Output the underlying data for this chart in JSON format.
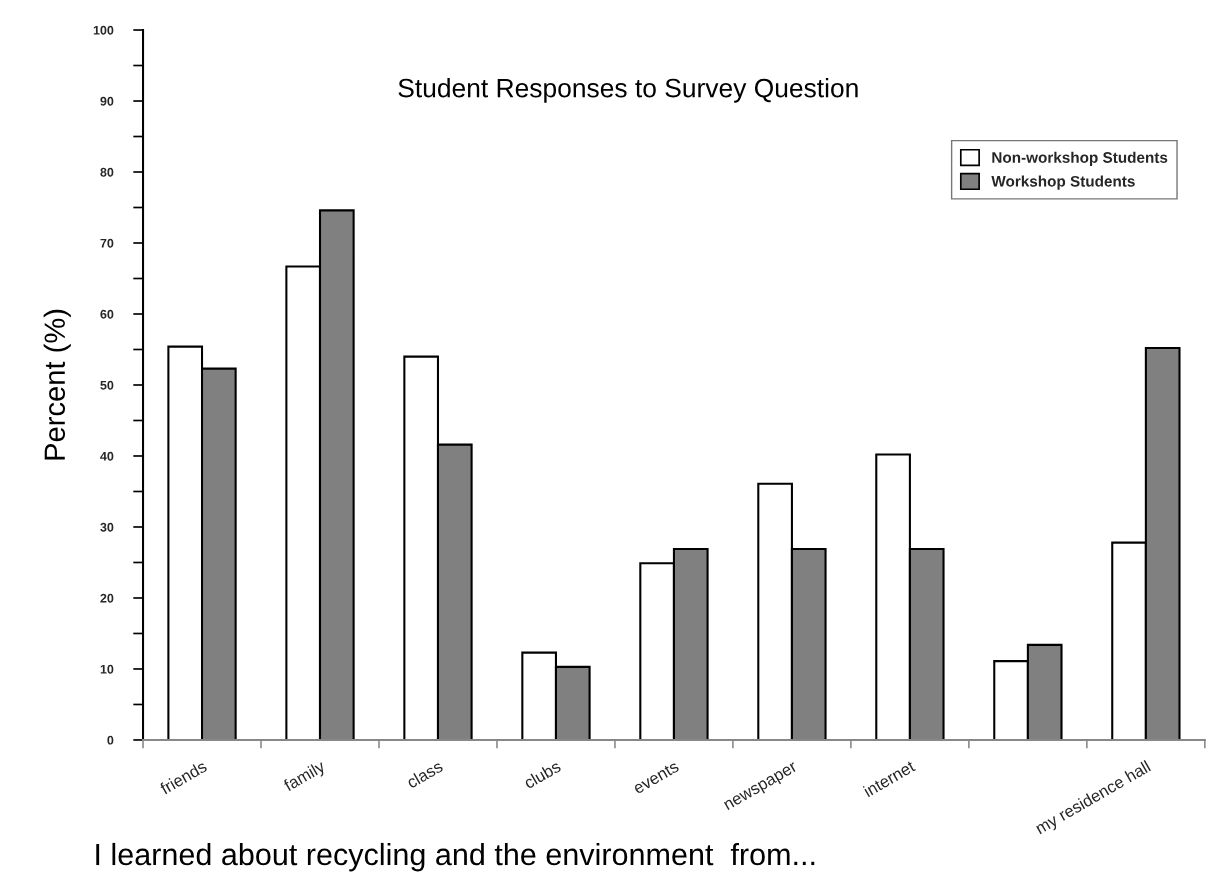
{
  "chart_data": {
    "type": "bar",
    "title": "Student Responses to Survey Question",
    "xlabel": "I learned about recycling and the environment  from...",
    "ylabel": "Percent (%)",
    "categories": [
      "friends",
      "family",
      "class",
      "clubs",
      "events",
      "newspaper",
      "internet",
      null,
      "my residence hall"
    ],
    "series": [
      {
        "name": "Non-workshop Students",
        "color": "#ffffff",
        "values": [
          55.4,
          66.7,
          54.0,
          12.3,
          24.9,
          36.1,
          40.2,
          11.1,
          27.8
        ]
      },
      {
        "name": "Workshop Students",
        "color": "#808080",
        "values": [
          52.3,
          74.6,
          41.6,
          10.3,
          26.9,
          26.9,
          26.9,
          13.4,
          55.2
        ]
      }
    ],
    "ylim": [
      0,
      100
    ],
    "yticks": [
      0,
      {
        "value": 5,
        "label": null
      },
      10,
      {
        "value": 15,
        "label": null
      },
      20,
      {
        "value": 25,
        "label": null
      },
      30,
      {
        "value": 35,
        "label": null
      },
      40,
      {
        "value": 45,
        "label": null
      },
      50,
      {
        "value": 55,
        "label": null
      },
      60,
      {
        "value": 65,
        "label": null
      },
      70,
      {
        "value": 75,
        "label": null
      },
      80,
      {
        "value": 85,
        "label": null
      },
      90,
      {
        "value": 95,
        "label": null
      },
      100
    ],
    "legend": "top right"
  }
}
